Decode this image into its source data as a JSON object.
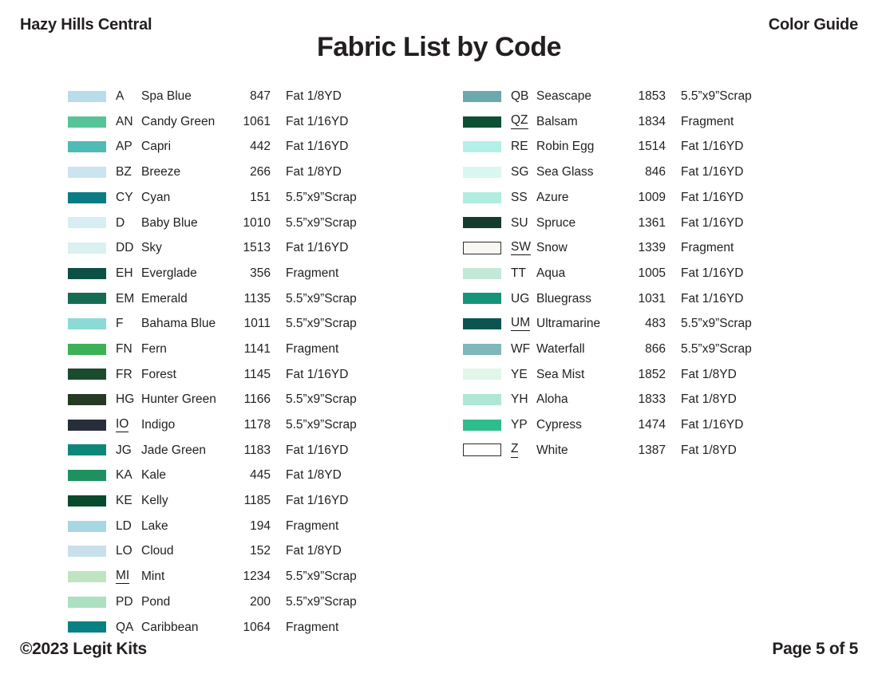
{
  "header": {
    "left": "Hazy Hills Central",
    "right": "Color Guide",
    "title": "Fabric List by Code"
  },
  "footer": {
    "left": "©2023 Legit Kits",
    "right": "Page 5 of 5"
  },
  "fabric_list": {
    "columns": [
      {
        "rows": [
          {
            "code": "A",
            "name": "Spa Blue",
            "number": "847",
            "cut": "Fat 1/8YD",
            "color": "#B9DCEA",
            "underlined": false,
            "bordered": false
          },
          {
            "code": "AN",
            "name": "Candy Green",
            "number": "1061",
            "cut": "Fat 1/16YD",
            "color": "#57C398",
            "underlined": false,
            "bordered": false
          },
          {
            "code": "AP",
            "name": "Capri",
            "number": "442",
            "cut": "Fat 1/16YD",
            "color": "#50BBB4",
            "underlined": false,
            "bordered": false
          },
          {
            "code": "BZ",
            "name": "Breeze",
            "number": "266",
            "cut": "Fat 1/8YD",
            "color": "#CBE4EF",
            "underlined": false,
            "bordered": false
          },
          {
            "code": "CY",
            "name": "Cyan",
            "number": "151",
            "cut": "5.5”x9”Scrap",
            "color": "#0B7C85",
            "underlined": false,
            "bordered": false
          },
          {
            "code": "D",
            "name": "Baby Blue",
            "number": "1010",
            "cut": "5.5”x9”Scrap",
            "color": "#D7EEF3",
            "underlined": false,
            "bordered": false
          },
          {
            "code": "DD",
            "name": "Sky",
            "number": "1513",
            "cut": "Fat 1/16YD",
            "color": "#DAF0F1",
            "underlined": false,
            "bordered": false
          },
          {
            "code": "EH",
            "name": "Everglade",
            "number": "356",
            "cut": "Fragment",
            "color": "#0D5045",
            "underlined": false,
            "bordered": false
          },
          {
            "code": "EM",
            "name": "Emerald",
            "number": "1135",
            "cut": "5.5”x9”Scrap",
            "color": "#156C53",
            "underlined": false,
            "bordered": false
          },
          {
            "code": "F",
            "name": "Bahama Blue",
            "number": "1011",
            "cut": "5.5”x9”Scrap",
            "color": "#8BDAD5",
            "underlined": false,
            "bordered": false
          },
          {
            "code": "FN",
            "name": "Fern",
            "number": "1141",
            "cut": "Fragment",
            "color": "#3EB055",
            "underlined": false,
            "bordered": false
          },
          {
            "code": "FR",
            "name": "Forest",
            "number": "1145",
            "cut": "Fat 1/16YD",
            "color": "#1B4A2D",
            "underlined": false,
            "bordered": false
          },
          {
            "code": "HG",
            "name": "Hunter Green",
            "number": "1166",
            "cut": "5.5”x9”Scrap",
            "color": "#243A22",
            "underlined": false,
            "bordered": false
          },
          {
            "code": "IO",
            "name": "Indigo",
            "number": "1178",
            "cut": "5.5”x9”Scrap",
            "color": "#272E3A",
            "underlined": true,
            "bordered": false
          },
          {
            "code": "JG",
            "name": "Jade Green",
            "number": "1183",
            "cut": "Fat 1/16YD",
            "color": "#0E877A",
            "underlined": false,
            "bordered": false
          },
          {
            "code": "KA",
            "name": "Kale",
            "number": "445",
            "cut": "Fat 1/8YD",
            "color": "#1F9161",
            "underlined": false,
            "bordered": false
          },
          {
            "code": "KE",
            "name": "Kelly",
            "number": "1185",
            "cut": "Fat 1/16YD",
            "color": "#084A2C",
            "underlined": false,
            "bordered": false
          },
          {
            "code": "LD",
            "name": "Lake",
            "number": "194",
            "cut": "Fragment",
            "color": "#A7D7E3",
            "underlined": false,
            "bordered": false
          },
          {
            "code": "LO",
            "name": "Cloud",
            "number": "152",
            "cut": "Fat 1/8YD",
            "color": "#C9E0EC",
            "underlined": false,
            "bordered": false
          },
          {
            "code": "MI",
            "name": "Mint",
            "number": "1234",
            "cut": "5.5”x9”Scrap",
            "color": "#C0E4C1",
            "underlined": true,
            "bordered": false
          },
          {
            "code": "PD",
            "name": "Pond",
            "number": "200",
            "cut": "5.5”x9”Scrap",
            "color": "#ACE0C1",
            "underlined": false,
            "bordered": false
          },
          {
            "code": "QA",
            "name": "Caribbean",
            "number": "1064",
            "cut": "Fragment",
            "color": "#098184",
            "underlined": false,
            "bordered": false
          }
        ]
      },
      {
        "rows": [
          {
            "code": "QB",
            "name": "Seascape",
            "number": "1853",
            "cut": "5.5”x9”Scrap",
            "color": "#6CA9AE",
            "underlined": false,
            "bordered": false
          },
          {
            "code": "QZ",
            "name": "Balsam",
            "number": "1834",
            "cut": "Fragment",
            "color": "#0D4F33",
            "underlined": true,
            "bordered": false
          },
          {
            "code": "RE",
            "name": "Robin Egg",
            "number": "1514",
            "cut": "Fat 1/16YD",
            "color": "#B4EFE8",
            "underlined": false,
            "bordered": false
          },
          {
            "code": "SG",
            "name": "Sea Glass",
            "number": "846",
            "cut": "Fat 1/16YD",
            "color": "#D9F7F0",
            "underlined": false,
            "bordered": false
          },
          {
            "code": "SS",
            "name": "Azure",
            "number": "1009",
            "cut": "Fat 1/16YD",
            "color": "#B0ECE0",
            "underlined": false,
            "bordered": false
          },
          {
            "code": "SU",
            "name": "Spruce",
            "number": "1361",
            "cut": "Fat 1/16YD",
            "color": "#143C2E",
            "underlined": false,
            "bordered": false
          },
          {
            "code": "SW",
            "name": "Snow",
            "number": "1339",
            "cut": "Fragment",
            "color": "#F8F7F1",
            "underlined": true,
            "bordered": true
          },
          {
            "code": "TT",
            "name": "Aqua",
            "number": "1005",
            "cut": "Fat 1/16YD",
            "color": "#C4E8D8",
            "underlined": false,
            "bordered": false
          },
          {
            "code": "UG",
            "name": "Bluegrass",
            "number": "1031",
            "cut": "Fat 1/16YD",
            "color": "#15947A",
            "underlined": false,
            "bordered": false
          },
          {
            "code": "UM",
            "name": "Ultramarine",
            "number": "483",
            "cut": "5.5”x9”Scrap",
            "color": "#0B5550",
            "underlined": true,
            "bordered": false
          },
          {
            "code": "WF",
            "name": "Waterfall",
            "number": "866",
            "cut": "5.5”x9”Scrap",
            "color": "#7FB7BB",
            "underlined": false,
            "bordered": false
          },
          {
            "code": "YE",
            "name": "Sea Mist",
            "number": "1852",
            "cut": "Fat 1/8YD",
            "color": "#E0F7E9",
            "underlined": false,
            "bordered": false
          },
          {
            "code": "YH",
            "name": "Aloha",
            "number": "1833",
            "cut": "Fat 1/8YD",
            "color": "#AEE7D3",
            "underlined": false,
            "bordered": false
          },
          {
            "code": "YP",
            "name": "Cypress",
            "number": "1474",
            "cut": "Fat 1/16YD",
            "color": "#2DBD8C",
            "underlined": false,
            "bordered": false
          },
          {
            "code": "Z",
            "name": "White",
            "number": "1387",
            "cut": "Fat 1/8YD",
            "color": "#FFFFFF",
            "underlined": true,
            "bordered": true
          }
        ]
      }
    ]
  }
}
